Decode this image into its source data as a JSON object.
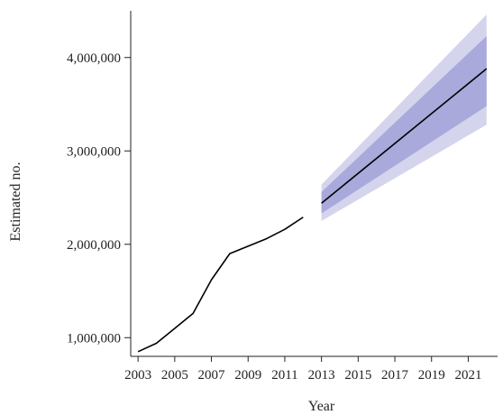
{
  "chart_data": {
    "type": "line",
    "xlabel": "Year",
    "ylabel": "Estimated no.",
    "xlim": [
      2002.6,
      2022.6
    ],
    "ylim": [
      800000,
      4500000
    ],
    "x_ticks": [
      2003,
      2005,
      2007,
      2009,
      2011,
      2013,
      2015,
      2017,
      2019,
      2021
    ],
    "x_tick_labels": [
      "2003",
      "2005",
      "2007",
      "2009",
      "2011",
      "2013",
      "2015",
      "2017",
      "2019",
      "2021"
    ],
    "y_ticks": [
      1000000,
      2000000,
      3000000,
      4000000
    ],
    "y_tick_labels": [
      "1,000,000",
      "2,000,000",
      "3,000,000",
      "4,000,000"
    ],
    "grid": false,
    "series": [
      {
        "x": [
          2003,
          2004,
          2005,
          2006,
          2007,
          2008,
          2009,
          2010,
          2011,
          2012
        ],
        "values": [
          850000,
          940000,
          1100000,
          1260000,
          1620000,
          1900000,
          1980000,
          2060000,
          2160000,
          2290000
        ]
      },
      {
        "x": [
          2013,
          2022
        ],
        "values": [
          2440000,
          3880000
        ]
      }
    ],
    "bands": [
      {
        "x": [
          2013,
          2022
        ],
        "lower": [
          2250000,
          3280000
        ],
        "upper": [
          2640000,
          4460000
        ],
        "color": "#d4d4ed"
      },
      {
        "x": [
          2013,
          2022
        ],
        "lower": [
          2330000,
          3480000
        ],
        "upper": [
          2560000,
          4230000
        ],
        "color": "#a9a9dc"
      }
    ]
  }
}
